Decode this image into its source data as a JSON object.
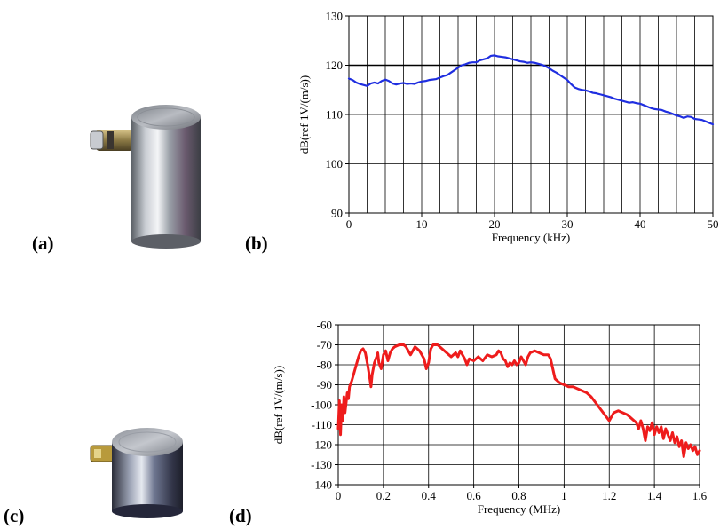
{
  "panels": {
    "a": "(a)",
    "b": "(b)",
    "c": "(c)",
    "d": "(d)"
  },
  "chart_data": [
    {
      "type": "line",
      "panel": "b",
      "xlabel": "Frequency (kHz)",
      "ylabel": "dB(ref 1V/(m/s))",
      "xlim": [
        0,
        50
      ],
      "ylim": [
        90,
        130
      ],
      "xticks": [
        0,
        10,
        20,
        30,
        40,
        50
      ],
      "yticks": [
        90,
        100,
        110,
        120,
        130
      ],
      "x_grid_step": 2.5,
      "grid": true,
      "reference_line_y": 120,
      "series": [
        {
          "color": "#1f2ee0",
          "points": [
            [
              0,
              117.3
            ],
            [
              0.5,
              117
            ],
            [
              1,
              116.5
            ],
            [
              1.5,
              116.2
            ],
            [
              2,
              116
            ],
            [
              2.5,
              115.8
            ],
            [
              3,
              116.3
            ],
            [
              3.5,
              116.5
            ],
            [
              4,
              116.3
            ],
            [
              4.5,
              116.8
            ],
            [
              5,
              117.1
            ],
            [
              5.5,
              116.8
            ],
            [
              6,
              116.3
            ],
            [
              6.5,
              116.1
            ],
            [
              7,
              116.3
            ],
            [
              7.5,
              116.4
            ],
            [
              8,
              116.2
            ],
            [
              8.5,
              116.3
            ],
            [
              9,
              116.2
            ],
            [
              9.5,
              116.5
            ],
            [
              10,
              116.7
            ],
            [
              10.5,
              116.8
            ],
            [
              11,
              117
            ],
            [
              11.5,
              117.1
            ],
            [
              12,
              117.2
            ],
            [
              12.5,
              117.5
            ],
            [
              13,
              117.8
            ],
            [
              13.5,
              118
            ],
            [
              14,
              118.5
            ],
            [
              14.5,
              119
            ],
            [
              15,
              119.5
            ],
            [
              15.5,
              120
            ],
            [
              16,
              120.2
            ],
            [
              16.5,
              120.5
            ],
            [
              17,
              120.6
            ],
            [
              17.5,
              120.6
            ],
            [
              18,
              121
            ],
            [
              18.5,
              121.2
            ],
            [
              19,
              121.4
            ],
            [
              19.5,
              121.9
            ],
            [
              20,
              122
            ],
            [
              20.5,
              121.8
            ],
            [
              21,
              121.7
            ],
            [
              21.5,
              121.6
            ],
            [
              22,
              121.4
            ],
            [
              22.5,
              121.2
            ],
            [
              23,
              121
            ],
            [
              23.5,
              120.8
            ],
            [
              24,
              120.7
            ],
            [
              24.5,
              120.5
            ],
            [
              25,
              120.6
            ],
            [
              25.5,
              120.5
            ],
            [
              26,
              120.3
            ],
            [
              26.5,
              120.1
            ],
            [
              27,
              119.8
            ],
            [
              27.5,
              119.4
            ],
            [
              28,
              118.9
            ],
            [
              28.5,
              118.5
            ],
            [
              29,
              118
            ],
            [
              29.5,
              117.5
            ],
            [
              30,
              117
            ],
            [
              30.5,
              116.2
            ],
            [
              31,
              115.5
            ],
            [
              31.5,
              115.2
            ],
            [
              32,
              115
            ],
            [
              32.5,
              114.9
            ],
            [
              33,
              114.7
            ],
            [
              33.5,
              114.4
            ],
            [
              34,
              114.3
            ],
            [
              34.5,
              114.1
            ],
            [
              35,
              113.9
            ],
            [
              35.5,
              113.7
            ],
            [
              36,
              113.5
            ],
            [
              36.5,
              113.2
            ],
            [
              37,
              113
            ],
            [
              37.5,
              112.8
            ],
            [
              38,
              112.6
            ],
            [
              38.5,
              112.4
            ],
            [
              39,
              112.5
            ],
            [
              39.5,
              112.3
            ],
            [
              40,
              112.2
            ],
            [
              40.5,
              111.9
            ],
            [
              41,
              111.6
            ],
            [
              41.5,
              111.3
            ],
            [
              42,
              111.1
            ],
            [
              42.5,
              111
            ],
            [
              43,
              110.9
            ],
            [
              43.5,
              110.6
            ],
            [
              44,
              110.4
            ],
            [
              44.5,
              110.1
            ],
            [
              45,
              109.8
            ],
            [
              45.5,
              109.6
            ],
            [
              46,
              109.3
            ],
            [
              46.5,
              109.6
            ],
            [
              47,
              109.5
            ],
            [
              47.5,
              109.1
            ],
            [
              48,
              109
            ],
            [
              48.5,
              108.9
            ],
            [
              49,
              108.6
            ],
            [
              49.5,
              108.3
            ],
            [
              50,
              108
            ]
          ]
        }
      ]
    },
    {
      "type": "line",
      "panel": "d",
      "xlabel": "Frequency (MHz)",
      "ylabel": "dB(ref 1V/(m/s))",
      "xlim": [
        0,
        1.6
      ],
      "ylim": [
        -140,
        -60
      ],
      "xticks": [
        0,
        0.2,
        0.4,
        0.6,
        0.8,
        1,
        1.2,
        1.4,
        1.6
      ],
      "yticks": [
        -60,
        -70,
        -80,
        -90,
        -100,
        -110,
        -120,
        -130,
        -140
      ],
      "grid": true,
      "series": [
        {
          "color": "#ee1c1c",
          "points": [
            [
              0.0,
              -112
            ],
            [
              0.005,
              -98
            ],
            [
              0.01,
              -115
            ],
            [
              0.015,
              -100
            ],
            [
              0.02,
              -108
            ],
            [
              0.025,
              -96
            ],
            [
              0.03,
              -104
            ],
            [
              0.035,
              -99
            ],
            [
              0.04,
              -94
            ],
            [
              0.045,
              -97
            ],
            [
              0.05,
              -91
            ],
            [
              0.06,
              -88
            ],
            [
              0.07,
              -84
            ],
            [
              0.08,
              -80
            ],
            [
              0.09,
              -76
            ],
            [
              0.1,
              -73
            ],
            [
              0.11,
              -72
            ],
            [
              0.12,
              -74
            ],
            [
              0.13,
              -80
            ],
            [
              0.14,
              -87
            ],
            [
              0.145,
              -91
            ],
            [
              0.15,
              -85
            ],
            [
              0.16,
              -79
            ],
            [
              0.17,
              -76
            ],
            [
              0.175,
              -74
            ],
            [
              0.18,
              -79
            ],
            [
              0.19,
              -82
            ],
            [
              0.2,
              -75
            ],
            [
              0.21,
              -73
            ],
            [
              0.22,
              -78
            ],
            [
              0.23,
              -74
            ],
            [
              0.24,
              -72
            ],
            [
              0.25,
              -71
            ],
            [
              0.27,
              -70
            ],
            [
              0.29,
              -70
            ],
            [
              0.3,
              -71
            ],
            [
              0.31,
              -73
            ],
            [
              0.32,
              -75
            ],
            [
              0.33,
              -73
            ],
            [
              0.34,
              -71
            ],
            [
              0.35,
              -72
            ],
            [
              0.36,
              -73
            ],
            [
              0.37,
              -75
            ],
            [
              0.38,
              -77
            ],
            [
              0.39,
              -82
            ],
            [
              0.4,
              -79
            ],
            [
              0.41,
              -72
            ],
            [
              0.42,
              -70
            ],
            [
              0.44,
              -70
            ],
            [
              0.46,
              -72
            ],
            [
              0.48,
              -74
            ],
            [
              0.5,
              -76
            ],
            [
              0.52,
              -74
            ],
            [
              0.53,
              -76
            ],
            [
              0.54,
              -73
            ],
            [
              0.55,
              -75
            ],
            [
              0.56,
              -77
            ],
            [
              0.57,
              -80
            ],
            [
              0.58,
              -77
            ],
            [
              0.6,
              -78
            ],
            [
              0.62,
              -76
            ],
            [
              0.64,
              -78
            ],
            [
              0.66,
              -75
            ],
            [
              0.68,
              -76
            ],
            [
              0.7,
              -75
            ],
            [
              0.71,
              -73
            ],
            [
              0.72,
              -74
            ],
            [
              0.73,
              -77
            ],
            [
              0.74,
              -78
            ],
            [
              0.75,
              -81
            ],
            [
              0.76,
              -79
            ],
            [
              0.77,
              -80
            ],
            [
              0.78,
              -78
            ],
            [
              0.79,
              -80
            ],
            [
              0.8,
              -79
            ],
            [
              0.81,
              -76
            ],
            [
              0.82,
              -78
            ],
            [
              0.83,
              -80
            ],
            [
              0.84,
              -76
            ],
            [
              0.85,
              -74
            ],
            [
              0.87,
              -73
            ],
            [
              0.89,
              -74
            ],
            [
              0.91,
              -75
            ],
            [
              0.93,
              -75
            ],
            [
              0.94,
              -77
            ],
            [
              0.95,
              -82
            ],
            [
              0.96,
              -87
            ],
            [
              0.98,
              -89
            ],
            [
              1.0,
              -90
            ],
            [
              1.02,
              -91
            ],
            [
              1.04,
              -91
            ],
            [
              1.06,
              -92
            ],
            [
              1.08,
              -93
            ],
            [
              1.1,
              -94
            ],
            [
              1.12,
              -96
            ],
            [
              1.14,
              -99
            ],
            [
              1.16,
              -102
            ],
            [
              1.18,
              -105
            ],
            [
              1.2,
              -108
            ],
            [
              1.22,
              -104
            ],
            [
              1.24,
              -103
            ],
            [
              1.26,
              -104
            ],
            [
              1.28,
              -105
            ],
            [
              1.3,
              -107
            ],
            [
              1.32,
              -109
            ],
            [
              1.33,
              -112
            ],
            [
              1.34,
              -108
            ],
            [
              1.35,
              -112
            ],
            [
              1.36,
              -118
            ],
            [
              1.37,
              -111
            ],
            [
              1.38,
              -113
            ],
            [
              1.39,
              -109
            ],
            [
              1.4,
              -115
            ],
            [
              1.41,
              -111
            ],
            [
              1.42,
              -114
            ],
            [
              1.43,
              -111
            ],
            [
              1.44,
              -117
            ],
            [
              1.45,
              -112
            ],
            [
              1.46,
              -115
            ],
            [
              1.47,
              -118
            ],
            [
              1.48,
              -114
            ],
            [
              1.49,
              -119
            ],
            [
              1.5,
              -116
            ],
            [
              1.51,
              -121
            ],
            [
              1.52,
              -118
            ],
            [
              1.53,
              -126
            ],
            [
              1.54,
              -119
            ],
            [
              1.55,
              -122
            ],
            [
              1.56,
              -120
            ],
            [
              1.57,
              -123
            ],
            [
              1.58,
              -121
            ],
            [
              1.59,
              -125
            ],
            [
              1.6,
              -123
            ]
          ]
        }
      ]
    }
  ],
  "colors": {
    "grid": "#000000",
    "line_b": "#1f2ee0",
    "line_d": "#ee1c1c"
  },
  "images": {
    "a": "accelerometer-photo",
    "c": "ae-sensor-photo"
  }
}
